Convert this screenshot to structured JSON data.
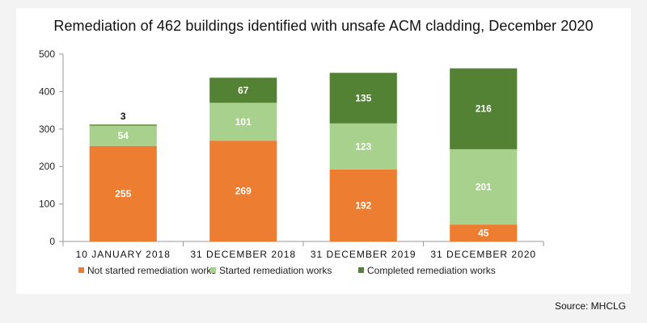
{
  "chart_data": {
    "type": "bar",
    "stacked": true,
    "title": "Remediation of 462 buildings identified with unsafe ACM cladding, December 2020",
    "source": "Source: MHCLG",
    "categories": [
      "10 JANUARY 2018",
      "31 DECEMBER 2018",
      "31 DECEMBER 2019",
      "31 DECEMBER 2020"
    ],
    "series": [
      {
        "name": "Not started remediation works",
        "color": "#ed7d31",
        "values": [
          255,
          269,
          192,
          45
        ]
      },
      {
        "name": "Started remediation works",
        "color": "#a9d18e",
        "values": [
          54,
          101,
          123,
          201
        ]
      },
      {
        "name": "Completed remediation works",
        "color": "#548235",
        "values": [
          3,
          67,
          135,
          216
        ]
      }
    ],
    "ylim": [
      0,
      500
    ],
    "yticks": [
      0,
      100,
      200,
      300,
      400,
      500
    ],
    "legend": "bottom",
    "grid": false
  }
}
